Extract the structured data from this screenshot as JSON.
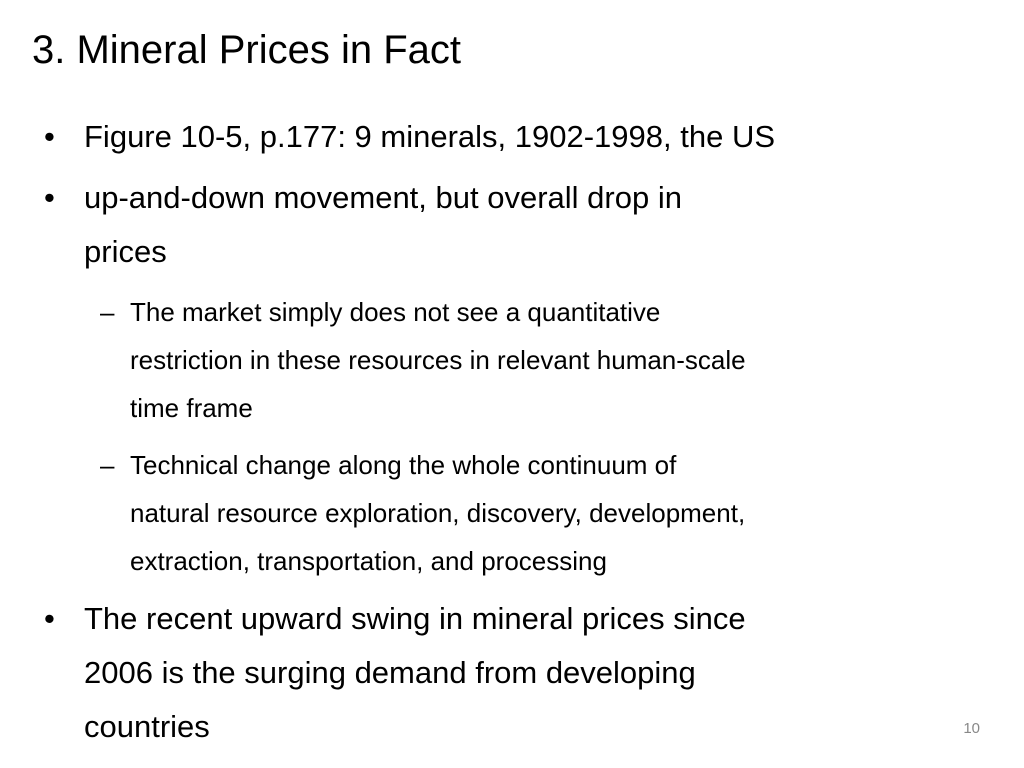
{
  "title": "3. Mineral Prices in Fact",
  "bullets": [
    {
      "lines": [
        "Figure 10-5, p.177: 9 minerals, 1902-1998, the US"
      ]
    },
    {
      "lines": [
        "up-and-down movement, but overall drop in",
        "prices"
      ],
      "sub": [
        {
          "lines": [
            "The market simply does not see a quantitative",
            "restriction in these resources in relevant human-scale",
            "time frame"
          ]
        },
        {
          "lines": [
            "Technical change along the whole continuum of",
            "natural resource exploration, discovery, development,",
            "extraction, transportation, and processing"
          ]
        }
      ]
    },
    {
      "lines": [
        "The recent upward swing in mineral prices since",
        "2006 is the surging demand from developing",
        "countries"
      ]
    }
  ],
  "page_number": "10"
}
